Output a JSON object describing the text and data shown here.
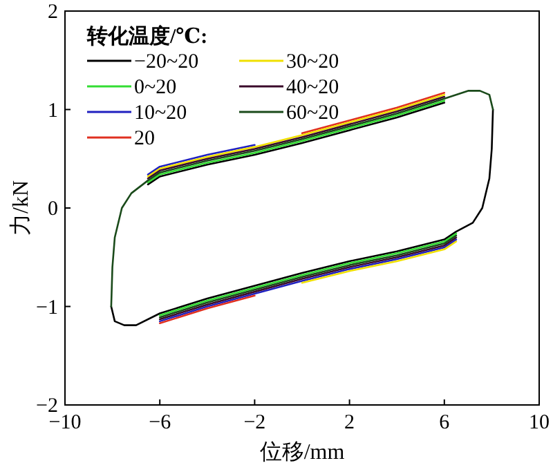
{
  "chart_data": {
    "type": "line",
    "xlabel": "位移/mm",
    "ylabel": "力/kN",
    "legend_title": "转化温度/℃:",
    "legend": "top left",
    "grid": false,
    "marker": "none",
    "line_style": "solid",
    "xlim": [
      -10,
      10
    ],
    "xticks": [
      -10,
      -6,
      -2,
      2,
      6,
      10
    ],
    "ylim": [
      -2,
      2
    ],
    "yticks": [
      -2,
      -1,
      0,
      1,
      2
    ],
    "x": [
      -6.5,
      -6,
      -4,
      -2,
      0,
      2,
      4,
      6
    ],
    "series": [
      {
        "name": "−20~20",
        "color": "#000000",
        "values": [
          0.24,
          0.32,
          0.44,
          0.54,
          0.66,
          0.79,
          0.92,
          1.07
        ]
      },
      {
        "name": "0~20",
        "color": "#33dd33",
        "values": [
          0.26,
          0.34,
          0.46,
          0.56,
          0.68,
          0.81,
          0.94,
          1.09
        ]
      },
      {
        "name": "10~20",
        "color": "#2020c0",
        "values": [
          0.34,
          0.42,
          0.54,
          0.64,
          null,
          null,
          null,
          null
        ]
      },
      {
        "name": "20",
        "color": "#e03020",
        "values": [
          null,
          null,
          null,
          null,
          0.76,
          0.89,
          1.02,
          1.17
        ]
      },
      {
        "name": "30~20",
        "color": "#f0e000",
        "values": [
          0.32,
          0.4,
          0.52,
          0.62,
          0.74,
          0.87,
          1.0,
          1.15
        ]
      },
      {
        "name": "40~20",
        "color": "#3a0a2a",
        "values": [
          0.3,
          0.38,
          0.5,
          0.6,
          0.72,
          0.85,
          0.98,
          1.13
        ]
      },
      {
        "name": "60~20",
        "color": "#1a4a1a",
        "x": [
          -8.05,
          -8.0,
          -7.9,
          -7.6,
          -7.2,
          -6.5,
          -6,
          -4,
          -2,
          0,
          2,
          4,
          6,
          7,
          7.5,
          7.9,
          8.05
        ],
        "values": [
          -1.0,
          -0.6,
          -0.3,
          0,
          0.15,
          0.28,
          0.36,
          0.48,
          0.58,
          0.7,
          0.83,
          0.96,
          1.11,
          1.19,
          1.19,
          1.15,
          1.0
        ]
      },
      {
        "color": "#000000",
        "x": [
          8.05,
          8.0,
          7.9,
          7.6,
          7.2,
          6.5,
          6,
          4,
          2,
          0,
          -2,
          -4,
          -6,
          -7,
          -7.5,
          -7.9,
          -8.05
        ],
        "values": [
          1.0,
          0.6,
          0.3,
          0,
          -0.15,
          -0.24,
          -0.32,
          -0.44,
          -0.54,
          -0.66,
          -0.79,
          -0.92,
          -1.07,
          -1.19,
          -1.19,
          -1.15,
          -1.0
        ]
      },
      {
        "color": "#33dd33",
        "x": [
          6.5,
          6,
          4,
          2,
          0,
          -2,
          -4,
          -6
        ],
        "values": [
          -0.26,
          -0.34,
          -0.46,
          -0.56,
          -0.68,
          -0.81,
          -0.94,
          -1.09
        ]
      },
      {
        "color": "#2020c0",
        "x": [
          6.5,
          6,
          4,
          2,
          0,
          -2,
          -4,
          -6
        ],
        "values": [
          -0.32,
          -0.4,
          -0.52,
          -0.62,
          -0.74,
          -0.87,
          -1.0,
          -1.15
        ]
      },
      {
        "color": "#e03020",
        "x": [
          -2,
          -4,
          -6
        ],
        "values": [
          -0.89,
          -1.02,
          -1.17
        ]
      },
      {
        "color": "#f0e000",
        "x": [
          6.5,
          6,
          4,
          2,
          0
        ],
        "values": [
          -0.34,
          -0.42,
          -0.54,
          -0.64,
          -0.76
        ]
      },
      {
        "color": "#3a0a2a",
        "x": [
          6.5,
          6,
          4,
          2,
          0,
          -2,
          -4,
          -6
        ],
        "values": [
          -0.3,
          -0.38,
          -0.5,
          -0.6,
          -0.72,
          -0.85,
          -0.98,
          -1.13
        ]
      },
      {
        "color": "#1a4a1a",
        "x": [
          6.5,
          6,
          4,
          2,
          0,
          -2,
          -4,
          -6
        ],
        "values": [
          -0.28,
          -0.36,
          -0.48,
          -0.58,
          -0.7,
          -0.83,
          -0.96,
          -1.11
        ]
      }
    ]
  }
}
